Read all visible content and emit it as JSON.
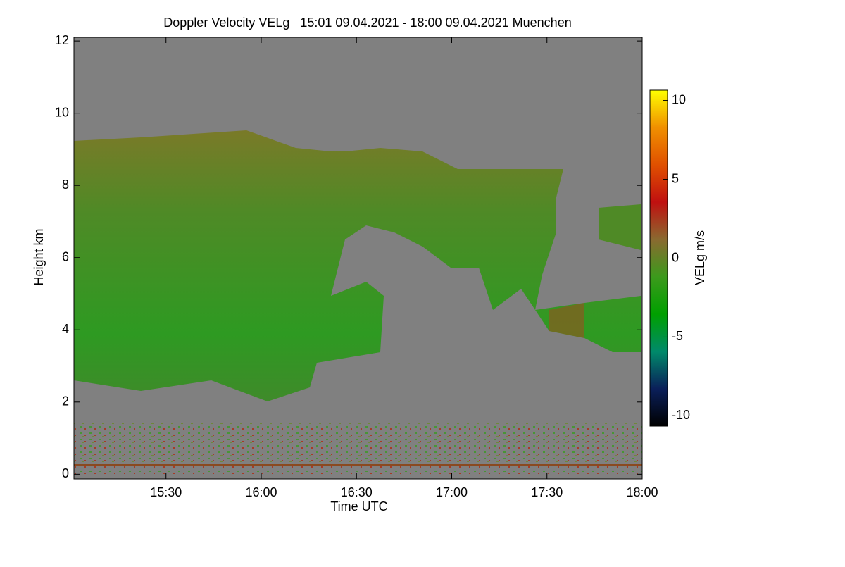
{
  "chart_data": {
    "type": "heatmap",
    "title": "Doppler Velocity VELg   15:01 09.04.2021 - 18:00 09.04.2021 Muenchen",
    "x_label": "Time UTC",
    "y_label": "Height km",
    "xlim": [
      901,
      1080
    ],
    "xticks": [
      {
        "value": 930,
        "label": "15:30"
      },
      {
        "value": 960,
        "label": "16:00"
      },
      {
        "value": 990,
        "label": "16:30"
      },
      {
        "value": 1020,
        "label": "17:00"
      },
      {
        "value": 1050,
        "label": "17:30"
      },
      {
        "value": 1080,
        "label": "18:00"
      }
    ],
    "ylim": [
      -0.13,
      12.1
    ],
    "yticks": [
      0,
      2,
      4,
      6,
      8,
      10,
      12
    ],
    "background_color": "#808080",
    "colorbar": {
      "label": "VELg m/s",
      "lim": [
        -10.65,
        10.65
      ],
      "ticks": [
        -10,
        -5,
        0,
        5,
        10
      ],
      "colors": [
        "#000000",
        "#0a1f5a",
        "#008a6a",
        "#00a000",
        "#3c9a1c",
        "#8a6a30",
        "#c01010",
        "#e05000",
        "#f09000",
        "#ffff00"
      ]
    }
  }
}
